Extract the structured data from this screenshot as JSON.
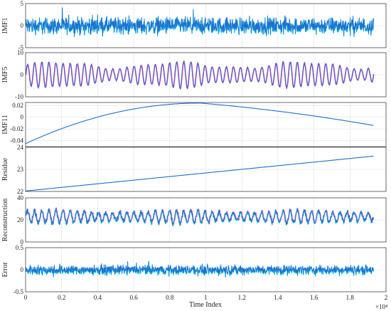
{
  "chart_data": {
    "type": "line",
    "x_label": "Time Index",
    "x_multiplier": "×10⁴",
    "xlim": [
      0,
      2
    ],
    "x_ticks": [
      0,
      0.2,
      0.4,
      0.6,
      0.8,
      1,
      1.2,
      1.4,
      1.6,
      1.8,
      2
    ],
    "x_tick_labels": [
      "0",
      "0.2",
      "0.4",
      "0.6",
      "0.8",
      "1",
      "1.2",
      "1.4",
      "1.6",
      "1.8",
      "2"
    ],
    "data_end": 1.93,
    "grid": true,
    "colors": {
      "line": "#1f6fd0",
      "cyan": "#00d5e8",
      "magenta": "#d03fa3",
      "grid": "#d9d9d9"
    },
    "panels": [
      {
        "ylabel": "IMF1",
        "ylim": [
          -5,
          5
        ],
        "y_ticks": [
          -5,
          0,
          5
        ],
        "y_tick_labels": [
          "-5",
          "0",
          "5"
        ],
        "kind": "noise",
        "amplitude": 2.8
      },
      {
        "ylabel": "IMF5",
        "ylim": [
          -10,
          10
        ],
        "y_ticks": [
          -10,
          0,
          10
        ],
        "y_tick_labels": [
          "-10",
          "0",
          "10"
        ],
        "kind": "oscillation",
        "cycles": 49,
        "amplitude": 5.5
      },
      {
        "ylabel": "IMF11",
        "ylim": [
          -0.05,
          0.025
        ],
        "y_ticks": [
          -0.04,
          -0.02,
          0,
          0.02
        ],
        "y_tick_labels": [
          "-0.04",
          "-0.02",
          "0",
          "0.02"
        ],
        "kind": "arc",
        "start": -0.045,
        "peak": 0.024,
        "peak_at": 0.97,
        "end": -0.014
      },
      {
        "ylabel": "Residue",
        "ylim": [
          22,
          24
        ],
        "y_ticks": [
          22,
          23,
          24
        ],
        "y_tick_labels": [
          "22",
          "23",
          "24"
        ],
        "kind": "trend",
        "start": 22.02,
        "end": 23.6
      },
      {
        "ylabel": "Reconstruction",
        "ylim": [
          0,
          40
        ],
        "y_ticks": [
          0,
          20,
          40
        ],
        "y_tick_labels": [
          "0",
          "20",
          "40"
        ],
        "kind": "reconstruction",
        "cycles": 49,
        "mean": 23,
        "amplitude": 5.5
      },
      {
        "ylabel": "Error",
        "ylim": [
          -0.5,
          0.5
        ],
        "y_ticks": [
          -0.5,
          0,
          0.5
        ],
        "y_tick_labels": [
          "-0.5",
          "0",
          "0.5"
        ],
        "kind": "noise",
        "amplitude": 0.16
      }
    ]
  }
}
